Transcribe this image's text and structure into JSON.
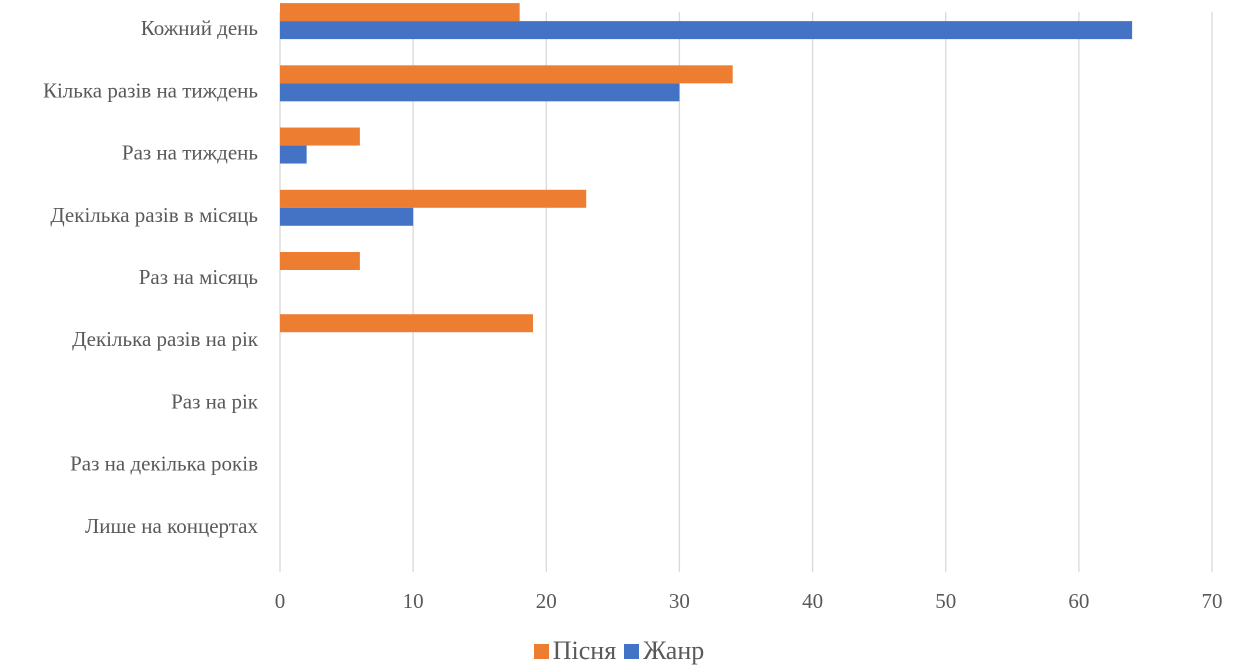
{
  "chart_data": {
    "type": "bar",
    "orientation": "horizontal",
    "categories": [
      "Кожний день",
      "Кілька разів на тиждень",
      "Раз на тиждень",
      "Декілька разів в місяць",
      "Раз на місяць",
      "Декілька разів на рік",
      "Раз на рік",
      "Раз на декілька років",
      "Лише на концертах"
    ],
    "series": [
      {
        "name": "Пісня",
        "color": "#ED7D31",
        "values": [
          18,
          34,
          6,
          23,
          6,
          19,
          0,
          0,
          0
        ]
      },
      {
        "name": "Жанр",
        "color": "#4472C4",
        "values": [
          64,
          30,
          2,
          10,
          0,
          0,
          0,
          0,
          0
        ]
      }
    ],
    "xlim": [
      0,
      70
    ],
    "xticks": [
      0,
      10,
      20,
      30,
      40,
      50,
      60,
      70
    ],
    "grid": true,
    "legend_position": "bottom"
  }
}
